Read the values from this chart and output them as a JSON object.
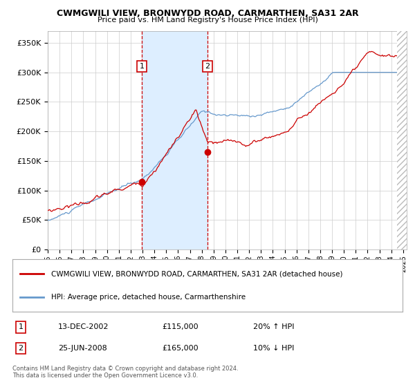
{
  "title1": "CWMGWILI VIEW, BRONWYDD ROAD, CARMARTHEN, SA31 2AR",
  "title2": "Price paid vs. HM Land Registry's House Price Index (HPI)",
  "legend_red": "CWMGWILI VIEW, BRONWYDD ROAD, CARMARTHEN, SA31 2AR (detached house)",
  "legend_blue": "HPI: Average price, detached house, Carmarthenshire",
  "event1_date": "13-DEC-2002",
  "event1_price": 115000,
  "event1_hpi": "20% ↑ HPI",
  "event2_date": "25-JUN-2008",
  "event2_price": 165000,
  "event2_hpi": "10% ↓ HPI",
  "footnote1": "Contains HM Land Registry data © Crown copyright and database right 2024.",
  "footnote2": "This data is licensed under the Open Government Licence v3.0.",
  "ylim": [
    0,
    370000
  ],
  "yticks": [
    0,
    50000,
    100000,
    150000,
    200000,
    250000,
    300000,
    350000
  ],
  "background_color": "#ffffff",
  "plot_bg": "#ffffff",
  "grid_color": "#cccccc",
  "red_color": "#cc0000",
  "blue_color": "#6699cc",
  "shade_color": "#ddeeff",
  "event_line_color": "#cc0000"
}
